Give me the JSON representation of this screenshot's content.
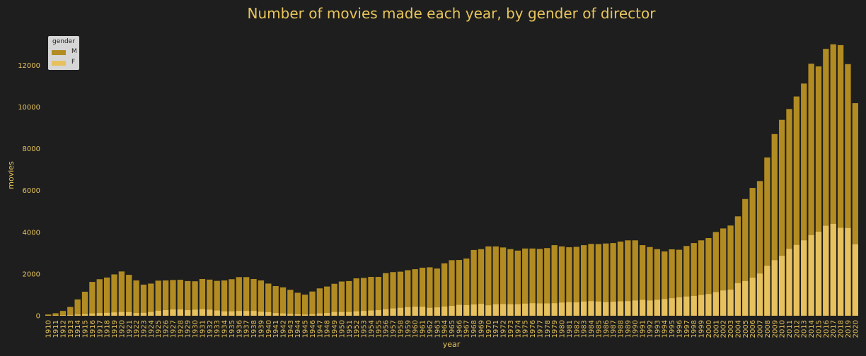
{
  "chart_data": {
    "type": "bar",
    "stacked": "overlay",
    "title": "Number of movies made each year, by gender of director",
    "xlabel": "year",
    "ylabel": "movies",
    "ylim": [
      0,
      13700
    ],
    "yticks": [
      0,
      2000,
      4000,
      6000,
      8000,
      10000,
      12000
    ],
    "grid": false,
    "legend": {
      "title": "gender",
      "placement": "top-left"
    },
    "categories": [
      "1910",
      "1911",
      "1912",
      "1913",
      "1914",
      "1915",
      "1916",
      "1917",
      "1918",
      "1919",
      "1920",
      "1921",
      "1922",
      "1923",
      "1924",
      "1925",
      "1926",
      "1927",
      "1928",
      "1929",
      "1930",
      "1931",
      "1932",
      "1933",
      "1934",
      "1935",
      "1936",
      "1937",
      "1938",
      "1939",
      "1940",
      "1941",
      "1942",
      "1943",
      "1944",
      "1945",
      "1946",
      "1947",
      "1948",
      "1949",
      "1950",
      "1951",
      "1952",
      "1953",
      "1954",
      "1955",
      "1956",
      "1957",
      "1958",
      "1959",
      "1960",
      "1961",
      "1962",
      "1963",
      "1964",
      "1965",
      "1966",
      "1967",
      "1968",
      "1969",
      "1970",
      "1971",
      "1972",
      "1973",
      "1974",
      "1975",
      "1976",
      "1977",
      "1978",
      "1979",
      "1980",
      "1981",
      "1982",
      "1983",
      "1984",
      "1985",
      "1986",
      "1987",
      "1988",
      "1989",
      "1990",
      "1991",
      "1992",
      "1993",
      "1994",
      "1995",
      "1996",
      "1997",
      "1998",
      "1999",
      "2000",
      "2001",
      "2002",
      "2003",
      "2004",
      "2005",
      "2006",
      "2007",
      "2008",
      "2009",
      "2010",
      "2011",
      "2012",
      "2013",
      "2014",
      "2015",
      "2016",
      "2017",
      "2018",
      "2019",
      "2020"
    ],
    "series": [
      {
        "name": "M",
        "color": "#b28c22",
        "values": [
          60,
          120,
          230,
          420,
          780,
          1150,
          1620,
          1750,
          1830,
          1980,
          2120,
          1960,
          1690,
          1490,
          1540,
          1680,
          1690,
          1710,
          1720,
          1660,
          1650,
          1760,
          1730,
          1670,
          1690,
          1750,
          1850,
          1850,
          1760,
          1690,
          1540,
          1420,
          1360,
          1240,
          1100,
          1010,
          1160,
          1310,
          1400,
          1530,
          1640,
          1660,
          1790,
          1810,
          1860,
          1860,
          2040,
          2090,
          2110,
          2180,
          2230,
          2300,
          2320,
          2260,
          2510,
          2660,
          2670,
          2740,
          3150,
          3190,
          3320,
          3320,
          3270,
          3190,
          3120,
          3220,
          3220,
          3200,
          3240,
          3380,
          3320,
          3280,
          3300,
          3380,
          3440,
          3430,
          3460,
          3480,
          3550,
          3610,
          3610,
          3380,
          3290,
          3190,
          3080,
          3180,
          3160,
          3340,
          3480,
          3610,
          3720,
          4010,
          4180,
          4320,
          4760,
          5590,
          6120,
          6450,
          7580,
          8700,
          9380,
          9900,
          10500,
          11120,
          12070,
          11940,
          12780,
          13000,
          12960,
          12050,
          10180
        ]
      },
      {
        "name": "F",
        "color": "#e6c15e",
        "values": [
          10,
          20,
          30,
          40,
          60,
          80,
          110,
          130,
          140,
          160,
          180,
          170,
          130,
          140,
          180,
          240,
          270,
          300,
          300,
          270,
          290,
          310,
          290,
          250,
          210,
          210,
          230,
          230,
          230,
          190,
          170,
          130,
          110,
          90,
          70,
          60,
          80,
          110,
          130,
          180,
          180,
          180,
          210,
          230,
          250,
          270,
          310,
          350,
          380,
          410,
          430,
          430,
          380,
          400,
          440,
          470,
          520,
          510,
          540,
          570,
          500,
          550,
          560,
          550,
          550,
          580,
          600,
          590,
          590,
          600,
          630,
          650,
          640,
          680,
          700,
          680,
          650,
          670,
          690,
          700,
          730,
          760,
          730,
          760,
          800,
          840,
          880,
          920,
          950,
          990,
          1040,
          1130,
          1210,
          1250,
          1560,
          1660,
          1820,
          2020,
          2390,
          2660,
          2870,
          3200,
          3390,
          3610,
          3860,
          4020,
          4310,
          4400,
          4210,
          4200,
          3420
        ]
      }
    ]
  }
}
